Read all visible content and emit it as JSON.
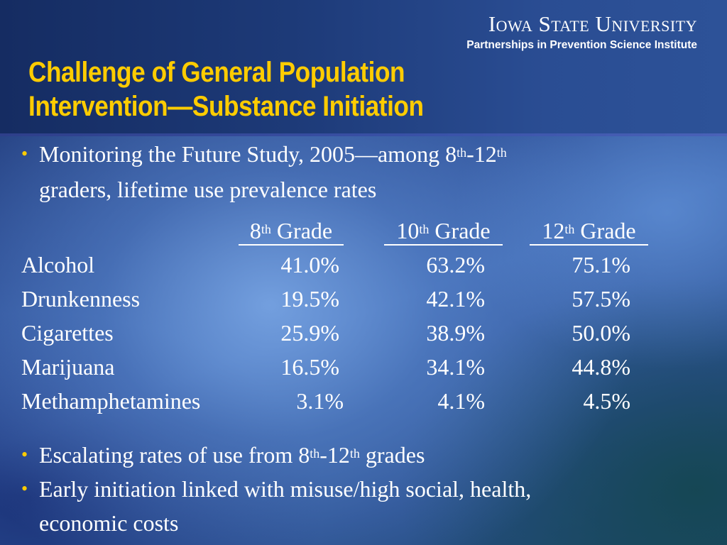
{
  "logo": {
    "name": "Iowa State University",
    "subtitle": "Partnerships in Prevention Science Institute"
  },
  "title": {
    "line1": "Challenge of General Population",
    "line2": "Intervention—Substance Initiation"
  },
  "bullet1": {
    "part1": "Monitoring the Future Study, 2005—among 8",
    "sup1": "th",
    "part2": "-12",
    "sup2": "th",
    "line2": "graders, lifetime use prevalence rates"
  },
  "table": {
    "headers": [
      {
        "num": "8",
        "sup": "th",
        "label": "Grade"
      },
      {
        "num": "10",
        "sup": "th",
        "label": "Grade"
      },
      {
        "num": "12",
        "sup": "th",
        "label": "Grade"
      }
    ],
    "rows": [
      {
        "substance": "Alcohol",
        "g8": "41.0%",
        "g10": "63.2%",
        "g12": "75.1%"
      },
      {
        "substance": "Drunkenness",
        "g8": "19.5%",
        "g10": "42.1%",
        "g12": "57.5%"
      },
      {
        "substance": "Cigarettes",
        "g8": "25.9%",
        "g10": "38.9%",
        "g12": "50.0%"
      },
      {
        "substance": "Marijuana",
        "g8": "16.5%",
        "g10": "34.1%",
        "g12": "44.8%"
      },
      {
        "substance": "Methamphetamines",
        "g8": "3.1%",
        "g10": "4.1%",
        "g12": "4.5%"
      }
    ]
  },
  "bullet2": {
    "part1": "Escalating rates of use from 8",
    "sup1": "th",
    "part2": "-12",
    "sup2": "th",
    "part3": " grades"
  },
  "bullet3": {
    "line1": "Early initiation linked with misuse/high social, health,",
    "line2": "economic costs"
  },
  "bullet_symbol": "•",
  "colors": {
    "title": "#ffcc00",
    "bullet": "#ffcc00",
    "text": "#ffffff"
  }
}
